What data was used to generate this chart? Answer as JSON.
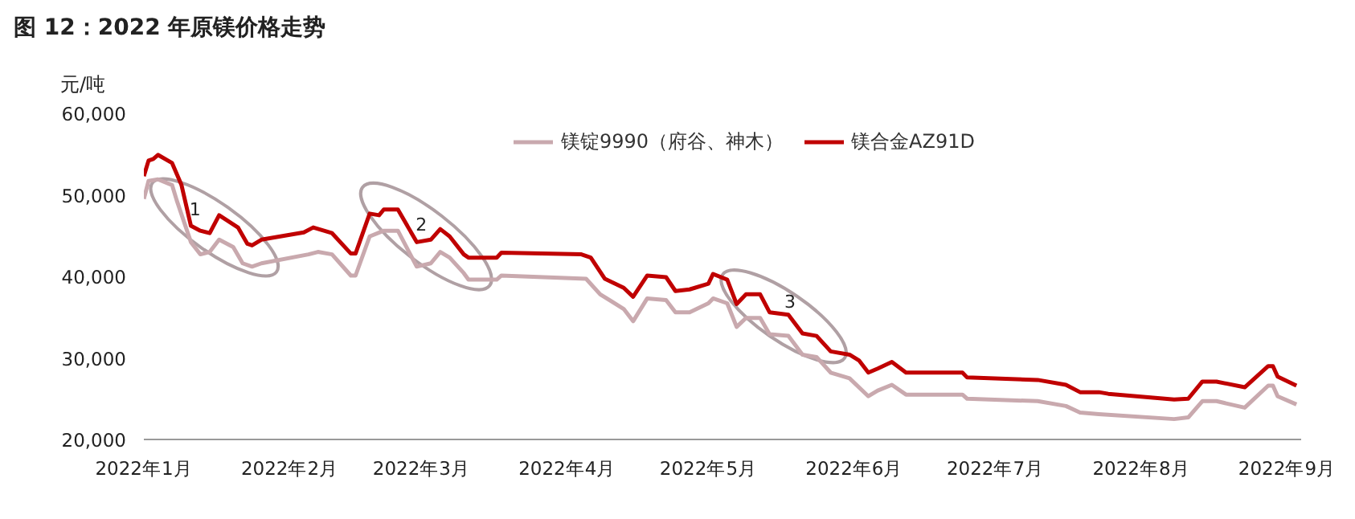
{
  "chart_data": {
    "type": "line",
    "title": "图 12：2022 年原镁价格走势",
    "ylabel": "元/吨",
    "xlim": [
      "2022-01-01",
      "2022-09-04"
    ],
    "ylim": [
      20000,
      60000
    ],
    "xticks": [
      {
        "value": "2022-01-01",
        "label": "2022年1月"
      },
      {
        "value": "2022-02-01",
        "label": "2022年2月"
      },
      {
        "value": "2022-03-01",
        "label": "2022年3月"
      },
      {
        "value": "2022-04-01",
        "label": "2022年4月"
      },
      {
        "value": "2022-05-01",
        "label": "2022年5月"
      },
      {
        "value": "2022-06-01",
        "label": "2022年6月"
      },
      {
        "value": "2022-07-01",
        "label": "2022年7月"
      },
      {
        "value": "2022-08-01",
        "label": "2022年8月"
      },
      {
        "value": "2022-09-01",
        "label": "2022年9月"
      }
    ],
    "yticks": [
      {
        "value": 20000,
        "label": "20,000"
      },
      {
        "value": 30000,
        "label": "30,000"
      },
      {
        "value": 40000,
        "label": "40,000"
      },
      {
        "value": 50000,
        "label": "50,000"
      },
      {
        "value": 60000,
        "label": "60,000"
      }
    ],
    "grid": false,
    "legend": "top",
    "marker": "none",
    "line_style": "solid",
    "annotations": [
      {
        "text": "1",
        "x": "2022-01-16",
        "y": 46000
      },
      {
        "text": "2",
        "x": "2022-03-02",
        "y": 44900
      },
      {
        "text": "3",
        "x": "2022-05-17",
        "y": 35100
      }
    ],
    "series": [
      {
        "name": "镁锭9990（府谷、神木）",
        "color": "#c9a9ae",
        "x": [
          "2022-01-01",
          "2022-01-02",
          "2022-01-04",
          "2022-01-07",
          "2022-01-08",
          "2022-01-11",
          "2022-01-13",
          "2022-01-15",
          "2022-01-17",
          "2022-01-20",
          "2022-01-22",
          "2022-01-24",
          "2022-01-26",
          "2022-02-05",
          "2022-02-07",
          "2022-02-10",
          "2022-02-14",
          "2022-02-15",
          "2022-02-18",
          "2022-02-21",
          "2022-02-24",
          "2022-02-28",
          "2022-03-03",
          "2022-03-05",
          "2022-03-07",
          "2022-03-10",
          "2022-03-11",
          "2022-03-17",
          "2022-03-18",
          "2022-04-05",
          "2022-04-08",
          "2022-04-13",
          "2022-04-15",
          "2022-04-18",
          "2022-04-22",
          "2022-04-24",
          "2022-04-27",
          "2022-05-01",
          "2022-05-02",
          "2022-05-05",
          "2022-05-07",
          "2022-05-09",
          "2022-05-12",
          "2022-05-14",
          "2022-05-18",
          "2022-05-21",
          "2022-05-24",
          "2022-05-27",
          "2022-05-31",
          "2022-06-04",
          "2022-06-06",
          "2022-06-09",
          "2022-06-12",
          "2022-06-24",
          "2022-06-25",
          "2022-07-10",
          "2022-07-16",
          "2022-07-19",
          "2022-07-23",
          "2022-08-08",
          "2022-08-11",
          "2022-08-14",
          "2022-08-17",
          "2022-08-23",
          "2022-08-28",
          "2022-08-29",
          "2022-08-30",
          "2022-09-03"
        ],
        "values": [
          49500,
          51700,
          51900,
          51200,
          49300,
          44200,
          42700,
          43000,
          44500,
          43600,
          41600,
          41200,
          41600,
          42700,
          43000,
          42700,
          40100,
          40100,
          44900,
          45600,
          45600,
          41200,
          41600,
          43000,
          42300,
          40400,
          39600,
          39600,
          40100,
          39700,
          37800,
          36000,
          34500,
          37300,
          37100,
          35600,
          35600,
          36700,
          37300,
          36700,
          33800,
          34900,
          34900,
          32900,
          32700,
          30400,
          30100,
          28200,
          27500,
          25300,
          26000,
          26700,
          25500,
          25500,
          25000,
          24700,
          24100,
          23300,
          23100,
          22500,
          22700,
          24700,
          24700,
          23900,
          26600,
          26600,
          25300,
          24300
        ]
      },
      {
        "name": "镁合金AZ91D",
        "color": "#c00000",
        "x": [
          "2022-01-01",
          "2022-01-02",
          "2022-01-03",
          "2022-01-04",
          "2022-01-07",
          "2022-01-09",
          "2022-01-11",
          "2022-01-13",
          "2022-01-15",
          "2022-01-17",
          "2022-01-21",
          "2022-01-23",
          "2022-01-24",
          "2022-01-26",
          "2022-02-04",
          "2022-02-06",
          "2022-02-10",
          "2022-02-14",
          "2022-02-15",
          "2022-02-18",
          "2022-02-20",
          "2022-02-21",
          "2022-02-24",
          "2022-02-28",
          "2022-03-03",
          "2022-03-05",
          "2022-03-07",
          "2022-03-10",
          "2022-03-11",
          "2022-03-17",
          "2022-03-18",
          "2022-04-04",
          "2022-04-06",
          "2022-04-09",
          "2022-04-13",
          "2022-04-15",
          "2022-04-18",
          "2022-04-22",
          "2022-04-24",
          "2022-04-27",
          "2022-05-01",
          "2022-05-02",
          "2022-05-05",
          "2022-05-07",
          "2022-05-09",
          "2022-05-12",
          "2022-05-14",
          "2022-05-18",
          "2022-05-21",
          "2022-05-24",
          "2022-05-27",
          "2022-05-31",
          "2022-06-02",
          "2022-06-04",
          "2022-06-06",
          "2022-06-09",
          "2022-06-12",
          "2022-06-24",
          "2022-06-25",
          "2022-07-10",
          "2022-07-16",
          "2022-07-19",
          "2022-07-23",
          "2022-07-25",
          "2022-08-08",
          "2022-08-11",
          "2022-08-14",
          "2022-08-17",
          "2022-08-23",
          "2022-08-28",
          "2022-08-29",
          "2022-08-30",
          "2022-09-03"
        ],
        "values": [
          52300,
          54200,
          54400,
          54900,
          53900,
          51200,
          46200,
          45600,
          45300,
          47500,
          46000,
          44000,
          43800,
          44500,
          45400,
          46000,
          45300,
          42800,
          42800,
          47700,
          47500,
          48200,
          48200,
          44200,
          44500,
          45800,
          44900,
          42700,
          42300,
          42300,
          42900,
          42700,
          42300,
          39700,
          38600,
          37500,
          40100,
          39900,
          38200,
          38400,
          39100,
          40300,
          39600,
          36600,
          37800,
          37800,
          35600,
          35300,
          33000,
          32700,
          30800,
          30400,
          29700,
          28200,
          28700,
          29500,
          28200,
          28200,
          27600,
          27300,
          26700,
          25800,
          25800,
          25600,
          24900,
          25000,
          27100,
          27100,
          26400,
          29000,
          29000,
          27700,
          26600
        ]
      }
    ]
  }
}
